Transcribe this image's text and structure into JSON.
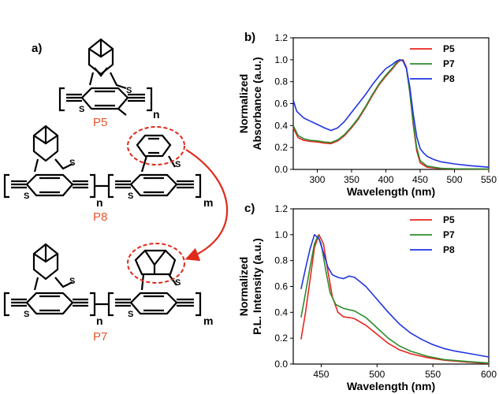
{
  "panel_a": {
    "letter": "a)",
    "molecules": [
      {
        "label": "P5",
        "sub_n": "n"
      },
      {
        "label": "P8",
        "sub_n": "n",
        "sub_m": "m"
      },
      {
        "label": "P7",
        "sub_n": "n",
        "sub_m": "m"
      }
    ],
    "atom_symbol": "S",
    "arrow_color": "#e02a1a"
  },
  "chart_data": [
    {
      "type": "line",
      "panel_letter": "b)",
      "xlabel": "Wavelength (nm)",
      "ylabel_lines": [
        "Normalized",
        "Absorbance (a.u.)"
      ],
      "xlim": [
        265,
        550
      ],
      "ylim": [
        0,
        1.2
      ],
      "xticks": [
        300,
        350,
        400,
        450,
        500,
        550
      ],
      "yticks": [
        "0.0",
        "0.2",
        "0.4",
        "0.6",
        "0.8",
        "1.0",
        "1.2"
      ],
      "legend_position": "top-right",
      "series": [
        {
          "name": "P5",
          "color": "#e8251f",
          "points": [
            [
              265,
              0.38
            ],
            [
              272,
              0.29
            ],
            [
              280,
              0.265
            ],
            [
              290,
              0.255
            ],
            [
              300,
              0.25
            ],
            [
              310,
              0.24
            ],
            [
              320,
              0.235
            ],
            [
              330,
              0.26
            ],
            [
              340,
              0.31
            ],
            [
              350,
              0.38
            ],
            [
              360,
              0.46
            ],
            [
              370,
              0.56
            ],
            [
              380,
              0.67
            ],
            [
              390,
              0.77
            ],
            [
              400,
              0.85
            ],
            [
              410,
              0.92
            ],
            [
              415,
              0.96
            ],
            [
              420,
              0.99
            ],
            [
              425,
              1.0
            ],
            [
              430,
              0.93
            ],
            [
              435,
              0.7
            ],
            [
              440,
              0.4
            ],
            [
              445,
              0.17
            ],
            [
              450,
              0.06
            ],
            [
              460,
              0.02
            ],
            [
              480,
              0.008
            ],
            [
              500,
              0.005
            ],
            [
              550,
              0.002
            ]
          ]
        },
        {
          "name": "P7",
          "color": "#2e8b2e",
          "points": [
            [
              265,
              0.4
            ],
            [
              272,
              0.31
            ],
            [
              280,
              0.28
            ],
            [
              290,
              0.265
            ],
            [
              300,
              0.26
            ],
            [
              310,
              0.25
            ],
            [
              320,
              0.245
            ],
            [
              330,
              0.27
            ],
            [
              340,
              0.32
            ],
            [
              350,
              0.39
            ],
            [
              360,
              0.47
            ],
            [
              370,
              0.57
            ],
            [
              380,
              0.68
            ],
            [
              390,
              0.78
            ],
            [
              400,
              0.86
            ],
            [
              410,
              0.93
            ],
            [
              415,
              0.97
            ],
            [
              420,
              1.0
            ],
            [
              425,
              0.99
            ],
            [
              430,
              0.92
            ],
            [
              435,
              0.7
            ],
            [
              440,
              0.42
            ],
            [
              445,
              0.2
            ],
            [
              450,
              0.08
            ],
            [
              460,
              0.03
            ],
            [
              480,
              0.01
            ],
            [
              500,
              0.006
            ],
            [
              550,
              0.003
            ]
          ]
        },
        {
          "name": "P8",
          "color": "#1f35e0",
          "points": [
            [
              265,
              0.63
            ],
            [
              270,
              0.53
            ],
            [
              280,
              0.47
            ],
            [
              290,
              0.44
            ],
            [
              300,
              0.41
            ],
            [
              310,
              0.38
            ],
            [
              320,
              0.355
            ],
            [
              330,
              0.38
            ],
            [
              340,
              0.44
            ],
            [
              350,
              0.52
            ],
            [
              360,
              0.6
            ],
            [
              370,
              0.68
            ],
            [
              380,
              0.77
            ],
            [
              390,
              0.85
            ],
            [
              400,
              0.92
            ],
            [
              410,
              0.96
            ],
            [
              415,
              0.985
            ],
            [
              420,
              1.0
            ],
            [
              425,
              0.99
            ],
            [
              430,
              0.92
            ],
            [
              435,
              0.75
            ],
            [
              440,
              0.5
            ],
            [
              445,
              0.3
            ],
            [
              450,
              0.19
            ],
            [
              455,
              0.15
            ],
            [
              460,
              0.12
            ],
            [
              470,
              0.09
            ],
            [
              480,
              0.07
            ],
            [
              500,
              0.05
            ],
            [
              520,
              0.035
            ],
            [
              550,
              0.02
            ]
          ]
        }
      ]
    },
    {
      "type": "line",
      "panel_letter": "c)",
      "xlabel": "Wavelength (nm)",
      "ylabel_lines": [
        "Normalized",
        "P.L. Intensity (a.u.)"
      ],
      "xlim": [
        425,
        600
      ],
      "ylim": [
        0,
        1.2
      ],
      "xticks": [
        450,
        500,
        550,
        600
      ],
      "yticks": [
        "0.0",
        "0.2",
        "0.4",
        "0.6",
        "0.8",
        "1.0",
        "1.2"
      ],
      "legend_position": "top-right",
      "series": [
        {
          "name": "P5",
          "color": "#e8251f",
          "points": [
            [
              432,
              0.19
            ],
            [
              436,
              0.4
            ],
            [
              440,
              0.65
            ],
            [
              444,
              0.9
            ],
            [
              448,
              1.0
            ],
            [
              452,
              0.93
            ],
            [
              456,
              0.72
            ],
            [
              460,
              0.52
            ],
            [
              465,
              0.4
            ],
            [
              470,
              0.365
            ],
            [
              475,
              0.36
            ],
            [
              480,
              0.35
            ],
            [
              490,
              0.3
            ],
            [
              500,
              0.23
            ],
            [
              510,
              0.16
            ],
            [
              520,
              0.11
            ],
            [
              530,
              0.08
            ],
            [
              545,
              0.05
            ],
            [
              560,
              0.03
            ],
            [
              580,
              0.015
            ],
            [
              600,
              0.005
            ]
          ]
        },
        {
          "name": "P7",
          "color": "#2e8b2e",
          "points": [
            [
              432,
              0.36
            ],
            [
              436,
              0.55
            ],
            [
              440,
              0.75
            ],
            [
              444,
              0.93
            ],
            [
              447,
              0.99
            ],
            [
              450,
              0.93
            ],
            [
              454,
              0.73
            ],
            [
              458,
              0.55
            ],
            [
              463,
              0.46
            ],
            [
              470,
              0.43
            ],
            [
              480,
              0.41
            ],
            [
              490,
              0.36
            ],
            [
              500,
              0.28
            ],
            [
              510,
              0.2
            ],
            [
              520,
              0.14
            ],
            [
              530,
              0.1
            ],
            [
              545,
              0.06
            ],
            [
              560,
              0.035
            ],
            [
              580,
              0.02
            ],
            [
              600,
              0.008
            ]
          ]
        },
        {
          "name": "P8",
          "color": "#1f35e0",
          "points": [
            [
              432,
              0.58
            ],
            [
              436,
              0.74
            ],
            [
              440,
              0.89
            ],
            [
              444,
              1.0
            ],
            [
              448,
              0.97
            ],
            [
              452,
              0.86
            ],
            [
              456,
              0.75
            ],
            [
              460,
              0.69
            ],
            [
              465,
              0.67
            ],
            [
              470,
              0.66
            ],
            [
              475,
              0.68
            ],
            [
              480,
              0.67
            ],
            [
              490,
              0.6
            ],
            [
              500,
              0.5
            ],
            [
              510,
              0.4
            ],
            [
              520,
              0.31
            ],
            [
              530,
              0.24
            ],
            [
              540,
              0.19
            ],
            [
              550,
              0.15
            ],
            [
              560,
              0.12
            ],
            [
              570,
              0.1
            ],
            [
              580,
              0.085
            ],
            [
              590,
              0.07
            ],
            [
              600,
              0.055
            ]
          ]
        }
      ]
    }
  ]
}
